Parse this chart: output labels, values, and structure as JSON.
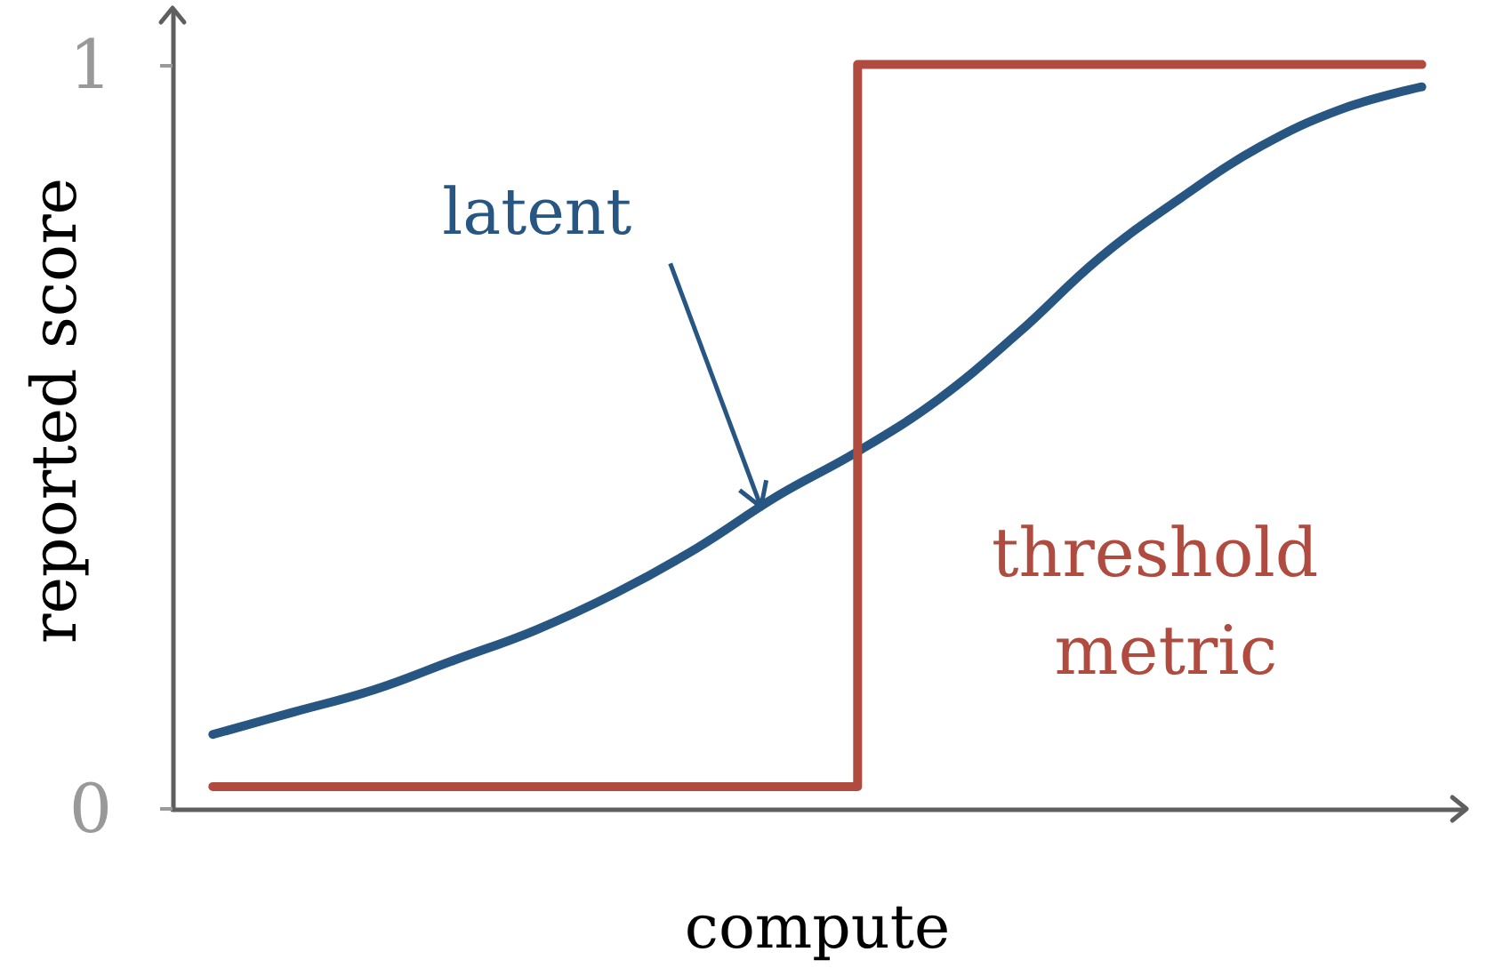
{
  "chart_data": {
    "type": "line",
    "xlabel": "compute",
    "ylabel": "reported score",
    "categories": [
      null,
      null,
      null,
      null,
      null,
      null,
      null,
      null,
      null,
      null,
      null,
      null,
      null,
      null,
      null,
      null
    ],
    "series": [
      {
        "name": "latent",
        "color": "#285682",
        "values": [
          0.1,
          0.13,
          0.16,
          0.2,
          0.24,
          0.29,
          0.35,
          0.42,
          0.48,
          0.55,
          0.64,
          0.74,
          0.82,
          0.89,
          0.94,
          0.97
        ]
      },
      {
        "name": "threshold metric",
        "type": "step",
        "color": "#b04b3f",
        "values": [
          0.03,
          0.03,
          0.03,
          0.03,
          0.03,
          0.03,
          0.03,
          0.03,
          1,
          1,
          1,
          1,
          1,
          1,
          1,
          1
        ]
      }
    ],
    "ylim": [
      0,
      1.07
    ],
    "yticks": [
      0,
      1
    ],
    "tick_labels": "y",
    "marker": "none"
  }
}
